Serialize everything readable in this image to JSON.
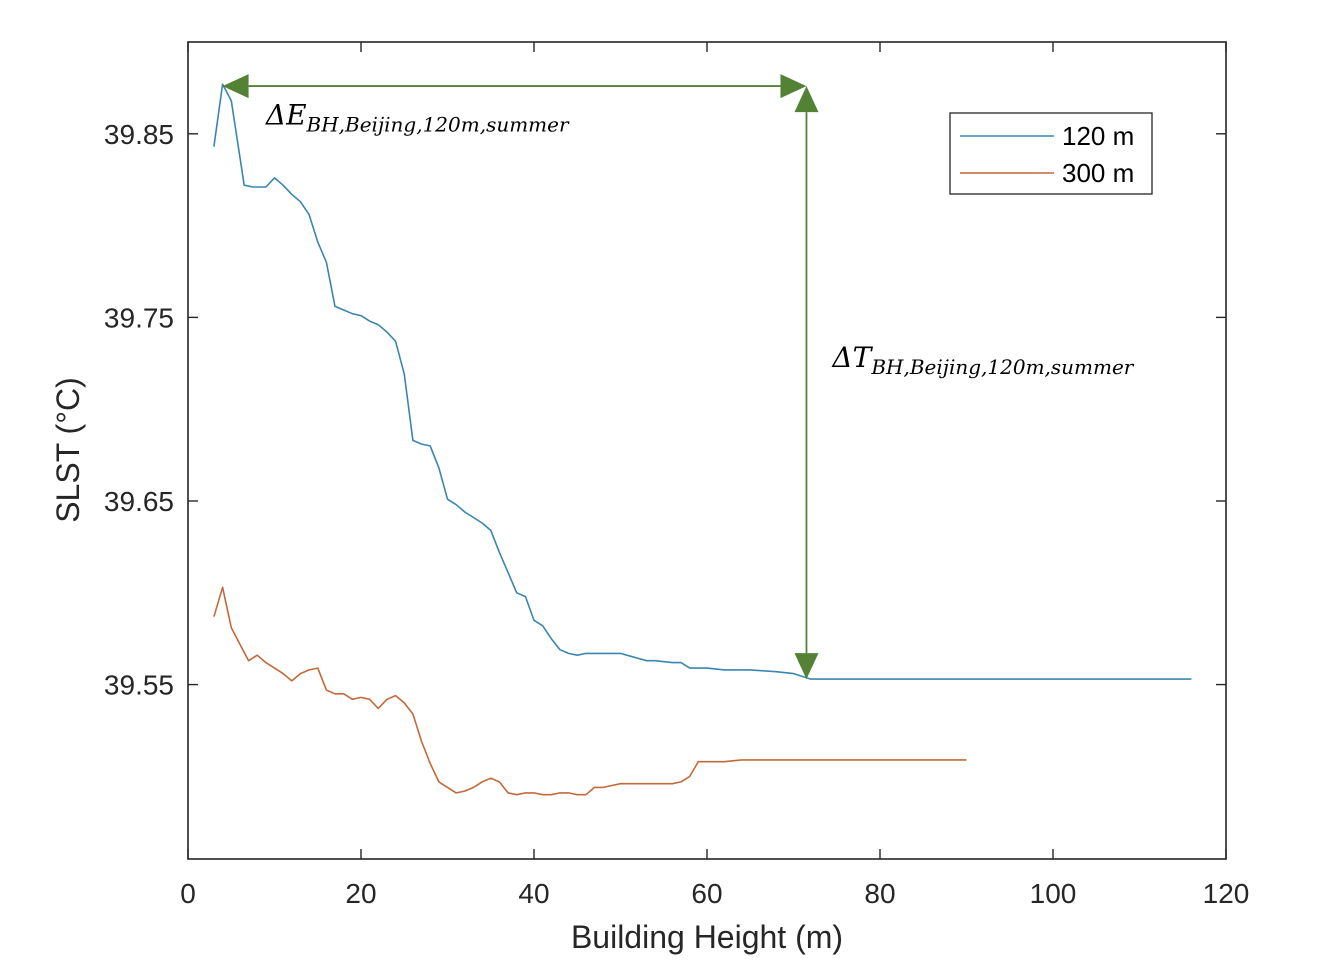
{
  "chart_data": {
    "type": "line",
    "title": "",
    "xlabel": "Building Height (m)",
    "ylabel": "SLST (°C)",
    "xlim": [
      0,
      120
    ],
    "ylim": [
      39.455,
      39.9
    ],
    "xticks": [
      0,
      20,
      40,
      60,
      80,
      100,
      120
    ],
    "yticks": [
      39.55,
      39.65,
      39.75,
      39.85
    ],
    "xtick_labels": [
      "0",
      "20",
      "40",
      "60",
      "80",
      "100",
      "120"
    ],
    "ytick_labels": [
      "39.55",
      "39.65",
      "39.75",
      "39.85"
    ],
    "grid": false,
    "legend_position": "top-right",
    "series": [
      {
        "name": "120 m",
        "color": "#3a86b0",
        "x": [
          3,
          4,
          5,
          6.5,
          7.5,
          9,
          10,
          11,
          12,
          13,
          14,
          15,
          16,
          17,
          18,
          19,
          20,
          21,
          22,
          23,
          24,
          25,
          26,
          27,
          28,
          29,
          30,
          31,
          32,
          33,
          34,
          35,
          36,
          37,
          38,
          39,
          40,
          41,
          42,
          43,
          44,
          45,
          46,
          47,
          48,
          50,
          53,
          54,
          56,
          57,
          58,
          60,
          62,
          63,
          65,
          68,
          70,
          72,
          80,
          100,
          116
        ],
        "y": [
          39.843,
          39.877,
          39.868,
          39.822,
          39.821,
          39.821,
          39.826,
          39.822,
          39.817,
          39.813,
          39.806,
          39.791,
          39.78,
          39.756,
          39.754,
          39.752,
          39.751,
          39.748,
          39.746,
          39.742,
          39.737,
          39.719,
          39.683,
          39.681,
          39.68,
          39.668,
          39.651,
          39.648,
          39.644,
          39.641,
          39.638,
          39.634,
          39.622,
          39.611,
          39.6,
          39.598,
          39.585,
          39.582,
          39.575,
          39.569,
          39.567,
          39.566,
          39.567,
          39.567,
          39.567,
          39.567,
          39.563,
          39.563,
          39.562,
          39.562,
          39.559,
          39.559,
          39.558,
          39.558,
          39.558,
          39.557,
          39.556,
          39.553,
          39.553,
          39.553,
          39.553
        ]
      },
      {
        "name": "300 m",
        "color": "#c4693a",
        "x": [
          3,
          4,
          5,
          6,
          7,
          8,
          9,
          10,
          11,
          12,
          13,
          14,
          15,
          16,
          17,
          18,
          19,
          20,
          21,
          22,
          23,
          24,
          25,
          26,
          27,
          28,
          29,
          30,
          31,
          32,
          33,
          34,
          35,
          36,
          37,
          38,
          39,
          40,
          41,
          42,
          43,
          44,
          45,
          46,
          47,
          48,
          50,
          52,
          54,
          56,
          57,
          58,
          59,
          62,
          64,
          70,
          80,
          90
        ],
        "y": [
          39.587,
          39.603,
          39.581,
          39.572,
          39.563,
          39.566,
          39.562,
          39.559,
          39.556,
          39.552,
          39.556,
          39.558,
          39.559,
          39.547,
          39.545,
          39.545,
          39.542,
          39.543,
          39.542,
          39.537,
          39.542,
          39.544,
          39.54,
          39.534,
          39.519,
          39.507,
          39.497,
          39.494,
          39.491,
          39.492,
          39.494,
          39.497,
          39.499,
          39.497,
          39.491,
          39.49,
          39.491,
          39.491,
          39.49,
          39.49,
          39.491,
          39.491,
          39.49,
          39.49,
          39.494,
          39.494,
          39.496,
          39.496,
          39.496,
          39.496,
          39.497,
          39.5,
          39.508,
          39.508,
          39.509,
          39.509,
          39.509,
          39.509
        ]
      }
    ],
    "annotations": [
      {
        "id": "delta-e",
        "symbol": "ΔE",
        "subscript": "BH,Beijing,120m,summer",
        "arrow": "horizontal",
        "x_from": 4,
        "x_to": 71.5,
        "y": 39.876,
        "label_x": 9,
        "label_y": 39.855
      },
      {
        "id": "delta-t",
        "symbol": "ΔT",
        "subscript": "BH,Beijing,120m,summer",
        "arrow": "vertical",
        "x": 71.5,
        "y_from": 39.876,
        "y_to": 39.553,
        "label_x": 74.5,
        "label_y": 39.723
      }
    ],
    "arrow_color": "#548235"
  }
}
